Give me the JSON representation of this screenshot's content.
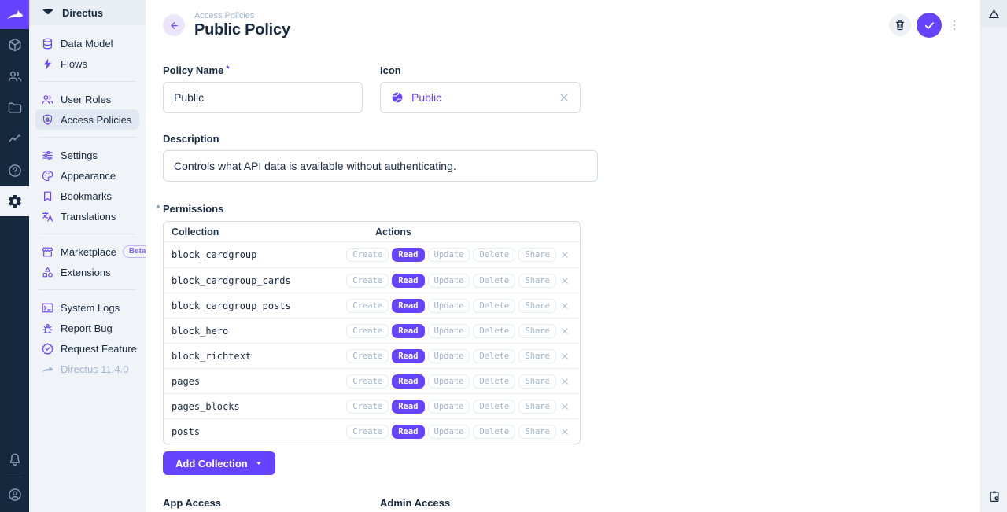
{
  "app": {
    "project_name": "Directus",
    "version_label": "Directus 11.4.0"
  },
  "module_bar": {
    "items": [
      {
        "name": "content",
        "icon": "box"
      },
      {
        "name": "users",
        "icon": "people"
      },
      {
        "name": "files",
        "icon": "folder"
      },
      {
        "name": "insights",
        "icon": "insights"
      },
      {
        "name": "docs",
        "icon": "help"
      },
      {
        "name": "settings",
        "icon": "settings",
        "active": true
      }
    ],
    "bottom": [
      {
        "name": "notifications",
        "icon": "bell"
      },
      {
        "name": "account",
        "icon": "account"
      }
    ]
  },
  "sidebar": {
    "sections": [
      {
        "items": [
          {
            "icon": "database",
            "label": "Data Model"
          },
          {
            "icon": "bolt",
            "label": "Flows"
          }
        ]
      },
      {
        "items": [
          {
            "icon": "people",
            "label": "User Roles"
          },
          {
            "icon": "shield-lock",
            "label": "Access Policies",
            "active": true
          }
        ]
      },
      {
        "items": [
          {
            "icon": "tune",
            "label": "Settings"
          },
          {
            "icon": "palette",
            "label": "Appearance"
          },
          {
            "icon": "bookmark",
            "label": "Bookmarks"
          },
          {
            "icon": "translate",
            "label": "Translations"
          }
        ]
      },
      {
        "items": [
          {
            "icon": "storefront",
            "label": "Marketplace",
            "badge": "Beta"
          },
          {
            "icon": "category",
            "label": "Extensions"
          }
        ]
      },
      {
        "items": [
          {
            "icon": "terminal",
            "label": "System Logs"
          },
          {
            "icon": "bug",
            "label": "Report Bug"
          },
          {
            "icon": "verified",
            "label": "Request Feature"
          },
          {
            "icon": "rabbit",
            "label": "Directus 11.4.0",
            "muted": true
          }
        ]
      }
    ]
  },
  "header": {
    "breadcrumb": "Access Policies",
    "title": "Public Policy"
  },
  "form": {
    "policy_name": {
      "label": "Policy Name",
      "required": "*",
      "value": "Public"
    },
    "icon": {
      "label": "Icon",
      "value": "Public"
    },
    "description": {
      "label": "Description",
      "value": "Controls what API data is available without authenticating."
    }
  },
  "permissions": {
    "label": "Permissions",
    "columns": {
      "collection": "Collection",
      "actions": "Actions"
    },
    "action_labels": [
      "Create",
      "Read",
      "Update",
      "Delete",
      "Share"
    ],
    "rows": [
      {
        "collection": "block_cardgroup",
        "active": [
          "Read"
        ]
      },
      {
        "collection": "block_cardgroup_cards",
        "active": [
          "Read"
        ]
      },
      {
        "collection": "block_cardgroup_posts",
        "active": [
          "Read"
        ]
      },
      {
        "collection": "block_hero",
        "active": [
          "Read"
        ]
      },
      {
        "collection": "block_richtext",
        "active": [
          "Read"
        ]
      },
      {
        "collection": "pages",
        "active": [
          "Read"
        ]
      },
      {
        "collection": "pages_blocks",
        "active": [
          "Read"
        ]
      },
      {
        "collection": "posts",
        "active": [
          "Read"
        ]
      }
    ],
    "add_button": "Add Collection"
  },
  "footer_fields": {
    "app_access": "App Access",
    "admin_access": "Admin Access"
  },
  "colors": {
    "brand": "#6644ff",
    "module_bar_bg": "#16283e",
    "sidebar_bg": "#f0f4f9",
    "text": "#172940",
    "muted": "#a2b5cd",
    "border": "#d3dae4"
  }
}
